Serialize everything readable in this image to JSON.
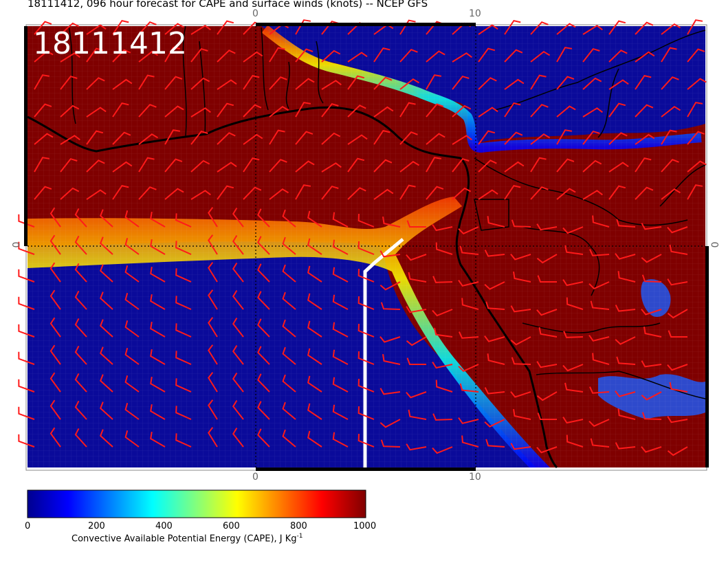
{
  "title": "18111412, 096 hour forecast for CAPE and surface winds (knots) -- NCEP GFS",
  "stamp": "18111412",
  "map": {
    "type": "map",
    "field": "CAPE",
    "winds": "surface wind barbs (knots)",
    "top_ticks": [
      "0",
      "10"
    ],
    "bottom_ticks": [
      "0",
      "10"
    ],
    "left_tick": "0",
    "right_tick": "0"
  },
  "colorbar": {
    "ticks": [
      "0",
      "200",
      "400",
      "600",
      "800",
      "1000"
    ],
    "label_prefix": "Convective Available Potential Energy (CAPE), J Kg",
    "label_sup": "-1",
    "colors": [
      "#00008f",
      "#0000ff",
      "#00ffff",
      "#ffff00",
      "#ff0000",
      "#800000"
    ]
  },
  "colors": {
    "high_cape": "#7f0000",
    "low_cape": "#08088f",
    "barb": "#ff1a1a",
    "track": "#ffffff",
    "coast": "#000000"
  }
}
